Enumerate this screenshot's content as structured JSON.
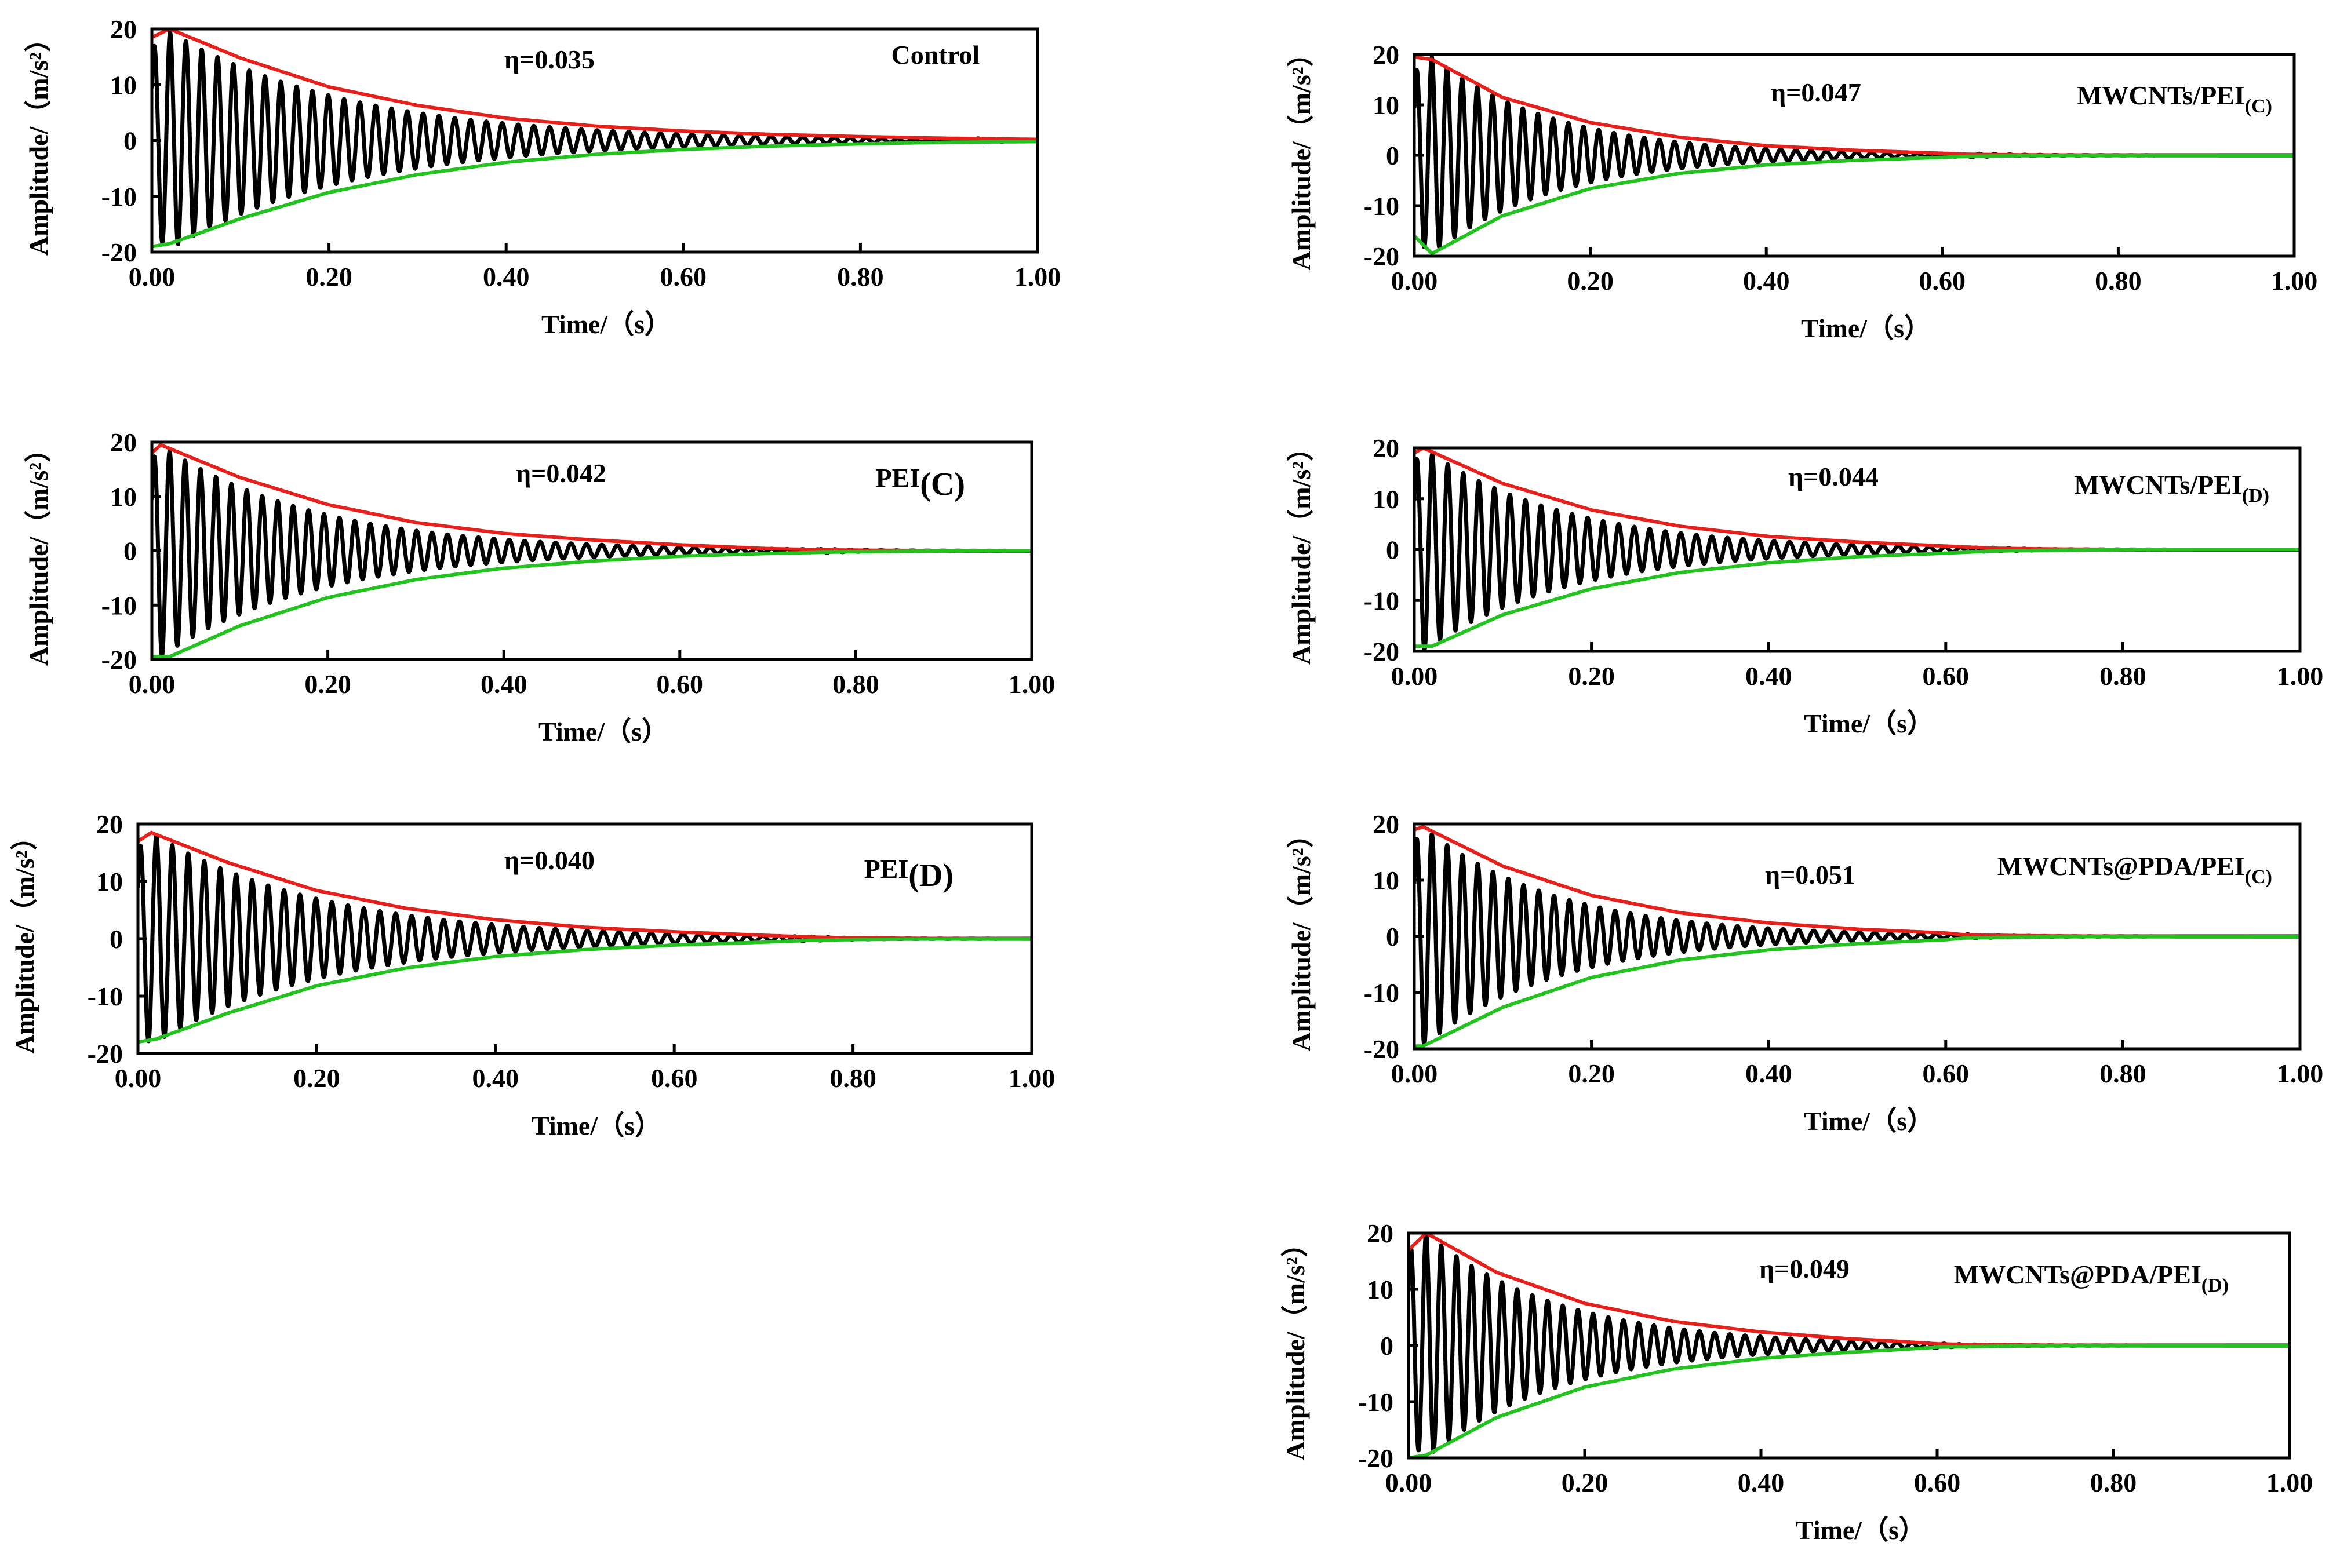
{
  "colors": {
    "signal": "#000000",
    "upper_envelope": "#e8201c",
    "lower_envelope": "#22c21f",
    "axis": "#000000",
    "background": "#ffffff"
  },
  "chart_data": [
    {
      "id": "control",
      "type": "line",
      "title": "Control",
      "title_sub": "",
      "eta_label": "η=0.035",
      "xlabel": "Time/（s）",
      "ylabel": "Amplitude/（m/s²）",
      "xlim": [
        0,
        1.0
      ],
      "ylim": [
        -20,
        20
      ],
      "xticks": [
        "0.00",
        "0.20",
        "0.40",
        "0.60",
        "0.80",
        "1.00"
      ],
      "yticks": [
        "20",
        "10",
        "0",
        "-10",
        "-20"
      ],
      "series": [
        {
          "name": "acceleration signal",
          "kind": "decaying oscillation",
          "initial_amplitude": 19.5,
          "peak_time": 0.02,
          "decay_time_constant": 0.205,
          "frequency_hz": 56,
          "settle_time": 0.93
        },
        {
          "name": "upper envelope",
          "kind": "envelope",
          "x": [
            0.0,
            0.02,
            0.1,
            0.2,
            0.3,
            0.4,
            0.5,
            0.6,
            0.7,
            0.8,
            0.9,
            1.0
          ],
          "y": [
            18.5,
            20.0,
            14.8,
            9.6,
            6.3,
            4.0,
            2.6,
            1.7,
            1.1,
            0.7,
            0.4,
            0.2
          ]
        },
        {
          "name": "lower envelope",
          "kind": "envelope",
          "x": [
            0.0,
            0.02,
            0.1,
            0.2,
            0.3,
            0.4,
            0.5,
            0.6,
            0.7,
            0.8,
            0.9,
            1.0
          ],
          "y": [
            -19.0,
            -18.5,
            -14.0,
            -9.3,
            -6.1,
            -3.9,
            -2.5,
            -1.6,
            -1.0,
            -0.6,
            -0.3,
            -0.2
          ]
        }
      ]
    },
    {
      "id": "pei_c",
      "type": "line",
      "title": "PEI",
      "title_sub": "(C)",
      "eta_label": "η=0.042",
      "xlabel": "Time/（s）",
      "ylabel": "Amplitude/（m/s²）",
      "xlim": [
        0,
        1.0
      ],
      "ylim": [
        -20,
        20
      ],
      "xticks": [
        "0.00",
        "0.20",
        "0.40",
        "0.60",
        "0.80",
        "1.00"
      ],
      "yticks": [
        "20",
        "10",
        "0",
        "-10",
        "-20"
      ],
      "series": [
        {
          "name": "acceleration signal",
          "kind": "decaying oscillation",
          "initial_amplitude": 19.5,
          "peak_time": 0.01,
          "decay_time_constant": 0.175,
          "frequency_hz": 57,
          "settle_time": 0.76
        },
        {
          "name": "upper envelope",
          "kind": "envelope",
          "x": [
            0.0,
            0.01,
            0.1,
            0.2,
            0.3,
            0.4,
            0.5,
            0.6,
            0.7,
            0.76
          ],
          "y": [
            18.0,
            19.5,
            13.5,
            8.5,
            5.2,
            3.2,
            2.0,
            1.1,
            0.4,
            0.2
          ]
        },
        {
          "name": "lower envelope",
          "kind": "envelope",
          "x": [
            0.0,
            0.02,
            0.1,
            0.2,
            0.3,
            0.4,
            0.5,
            0.6,
            0.7,
            0.76
          ],
          "y": [
            -19.5,
            -19.5,
            -13.8,
            -8.6,
            -5.3,
            -3.2,
            -1.9,
            -1.0,
            -0.5,
            -0.3
          ]
        }
      ]
    },
    {
      "id": "pei_d",
      "type": "line",
      "title": "PEI",
      "title_sub": "(D)",
      "eta_label": "η=0.040",
      "xlabel": "Time/（s）",
      "ylabel": "Amplitude/（m/s²）",
      "xlim": [
        0,
        1.0
      ],
      "ylim": [
        -20,
        20
      ],
      "xticks": [
        "0.00",
        "0.20",
        "0.40",
        "0.60",
        "0.80",
        "1.00"
      ],
      "yticks": [
        "20",
        "10",
        "0",
        "-10",
        "-20"
      ],
      "series": [
        {
          "name": "acceleration signal",
          "kind": "decaying oscillation",
          "initial_amplitude": 18.5,
          "peak_time": 0.015,
          "decay_time_constant": 0.19,
          "frequency_hz": 56,
          "settle_time": 0.75
        },
        {
          "name": "upper envelope",
          "kind": "envelope",
          "x": [
            0.0,
            0.015,
            0.1,
            0.2,
            0.3,
            0.4,
            0.5,
            0.6,
            0.7,
            0.75
          ],
          "y": [
            17.0,
            18.5,
            13.3,
            8.4,
            5.3,
            3.3,
            2.0,
            1.2,
            0.6,
            0.3
          ]
        },
        {
          "name": "lower envelope",
          "kind": "envelope",
          "x": [
            0.0,
            0.02,
            0.1,
            0.2,
            0.3,
            0.4,
            0.5,
            0.6,
            0.7,
            0.75
          ],
          "y": [
            -18.0,
            -17.5,
            -13.0,
            -8.2,
            -5.1,
            -3.1,
            -1.9,
            -1.1,
            -0.6,
            -0.3
          ]
        }
      ]
    },
    {
      "id": "mwcnts_pei_c",
      "type": "line",
      "title": "MWCNTs/PEI",
      "title_sub": "(C)",
      "eta_label": "η=0.047",
      "xlabel": "Time/（s）",
      "ylabel": "Amplitude/（m/s²）",
      "xlim": [
        0,
        1.0
      ],
      "ylim": [
        -20,
        20
      ],
      "xticks": [
        "0.00",
        "0.20",
        "0.40",
        "0.60",
        "0.80",
        "1.00"
      ],
      "yticks": [
        "20",
        "10",
        "0",
        "-10",
        "-20"
      ],
      "series": [
        {
          "name": "acceleration signal",
          "kind": "decaying oscillation",
          "initial_amplitude": 19.5,
          "peak_time": 0.02,
          "decay_time_constant": 0.14,
          "frequency_hz": 58,
          "settle_time": 0.63
        },
        {
          "name": "upper envelope",
          "kind": "envelope",
          "x": [
            0.0,
            0.02,
            0.1,
            0.2,
            0.3,
            0.4,
            0.5,
            0.6,
            0.63
          ],
          "y": [
            19.5,
            19.0,
            11.5,
            6.5,
            3.6,
            1.9,
            1.0,
            0.4,
            0.2
          ]
        },
        {
          "name": "lower envelope",
          "kind": "envelope",
          "x": [
            0.0,
            0.02,
            0.1,
            0.2,
            0.3,
            0.4,
            0.5,
            0.6,
            0.63
          ],
          "y": [
            -16.0,
            -19.5,
            -12.0,
            -6.6,
            -3.6,
            -1.9,
            -1.0,
            -0.4,
            -0.2
          ]
        }
      ]
    },
    {
      "id": "mwcnts_pei_d",
      "type": "line",
      "title": "MWCNTs/PEI",
      "title_sub": "(D)",
      "eta_label": "η=0.044",
      "xlabel": "Time/（s）",
      "ylabel": "Amplitude/（m/s²）",
      "xlim": [
        0,
        1.0
      ],
      "ylim": [
        -20,
        20
      ],
      "xticks": [
        "0.00",
        "0.20",
        "0.40",
        "0.60",
        "0.80",
        "1.00"
      ],
      "yticks": [
        "20",
        "10",
        "0",
        "-10",
        "-20"
      ],
      "series": [
        {
          "name": "acceleration signal",
          "kind": "decaying oscillation",
          "initial_amplitude": 20.0,
          "peak_time": 0.01,
          "decay_time_constant": 0.16,
          "frequency_hz": 57,
          "settle_time": 0.65
        },
        {
          "name": "upper envelope",
          "kind": "envelope",
          "x": [
            0.0,
            0.01,
            0.1,
            0.2,
            0.3,
            0.4,
            0.5,
            0.6,
            0.65
          ],
          "y": [
            19.0,
            20.0,
            13.0,
            7.8,
            4.6,
            2.6,
            1.5,
            0.7,
            0.3
          ]
        },
        {
          "name": "lower envelope",
          "kind": "envelope",
          "x": [
            0.0,
            0.02,
            0.1,
            0.2,
            0.3,
            0.4,
            0.5,
            0.6,
            0.65
          ],
          "y": [
            -19.0,
            -19.0,
            -12.8,
            -7.7,
            -4.5,
            -2.6,
            -1.4,
            -0.7,
            -0.3
          ]
        }
      ]
    },
    {
      "id": "mwcnts_pda_pei_c",
      "type": "line",
      "title": "MWCNTs@PDA/PEI",
      "title_sub": "(C)",
      "eta_label": "η=0.051",
      "xlabel": "Time/（s）",
      "ylabel": "Amplitude/（m/s²）",
      "xlim": [
        0,
        1.0
      ],
      "ylim": [
        -20,
        20
      ],
      "xticks": [
        "0.00",
        "0.20",
        "0.40",
        "0.60",
        "0.80",
        "1.00"
      ],
      "yticks": [
        "20",
        "10",
        "0",
        "-10",
        "-20"
      ],
      "series": [
        {
          "name": "acceleration signal",
          "kind": "decaying oscillation",
          "initial_amplitude": 19.5,
          "peak_time": 0.01,
          "decay_time_constant": 0.15,
          "frequency_hz": 58,
          "settle_time": 0.62
        },
        {
          "name": "upper envelope",
          "kind": "envelope",
          "x": [
            0.0,
            0.01,
            0.1,
            0.2,
            0.3,
            0.4,
            0.5,
            0.6,
            0.62
          ],
          "y": [
            19.0,
            19.5,
            12.5,
            7.3,
            4.2,
            2.4,
            1.3,
            0.6,
            0.3
          ]
        },
        {
          "name": "lower envelope",
          "kind": "envelope",
          "x": [
            0.0,
            0.01,
            0.1,
            0.2,
            0.3,
            0.4,
            0.5,
            0.6,
            0.62
          ],
          "y": [
            -19.5,
            -19.5,
            -12.6,
            -7.3,
            -4.2,
            -2.4,
            -1.3,
            -0.6,
            -0.3
          ]
        }
      ]
    },
    {
      "id": "mwcnts_pda_pei_d",
      "type": "line",
      "title": "MWCNTs@PDA/PEI",
      "title_sub": "(D)",
      "eta_label": "η=0.049",
      "xlabel": "Time/（s）",
      "ylabel": "Amplitude/（m/s²）",
      "xlim": [
        0,
        1.0
      ],
      "ylim": [
        -20,
        20
      ],
      "xticks": [
        "0.00",
        "0.20",
        "0.40",
        "0.60",
        "0.80",
        "1.00"
      ],
      "yticks": [
        "20",
        "10",
        "0",
        "-10",
        "-20"
      ],
      "series": [
        {
          "name": "acceleration signal",
          "kind": "decaying oscillation",
          "initial_amplitude": 20.0,
          "peak_time": 0.02,
          "decay_time_constant": 0.15,
          "frequency_hz": 58,
          "settle_time": 0.6
        },
        {
          "name": "upper envelope",
          "kind": "envelope",
          "x": [
            0.0,
            0.02,
            0.1,
            0.2,
            0.3,
            0.4,
            0.5,
            0.55,
            0.6
          ],
          "y": [
            17.0,
            20.0,
            13.0,
            7.5,
            4.3,
            2.4,
            1.2,
            0.8,
            0.3
          ]
        },
        {
          "name": "lower envelope",
          "kind": "envelope",
          "x": [
            0.0,
            0.02,
            0.1,
            0.2,
            0.3,
            0.4,
            0.5,
            0.55,
            0.6
          ],
          "y": [
            -20.0,
            -19.5,
            -12.8,
            -7.4,
            -4.2,
            -2.3,
            -1.2,
            -0.8,
            -0.3
          ]
        }
      ]
    }
  ]
}
